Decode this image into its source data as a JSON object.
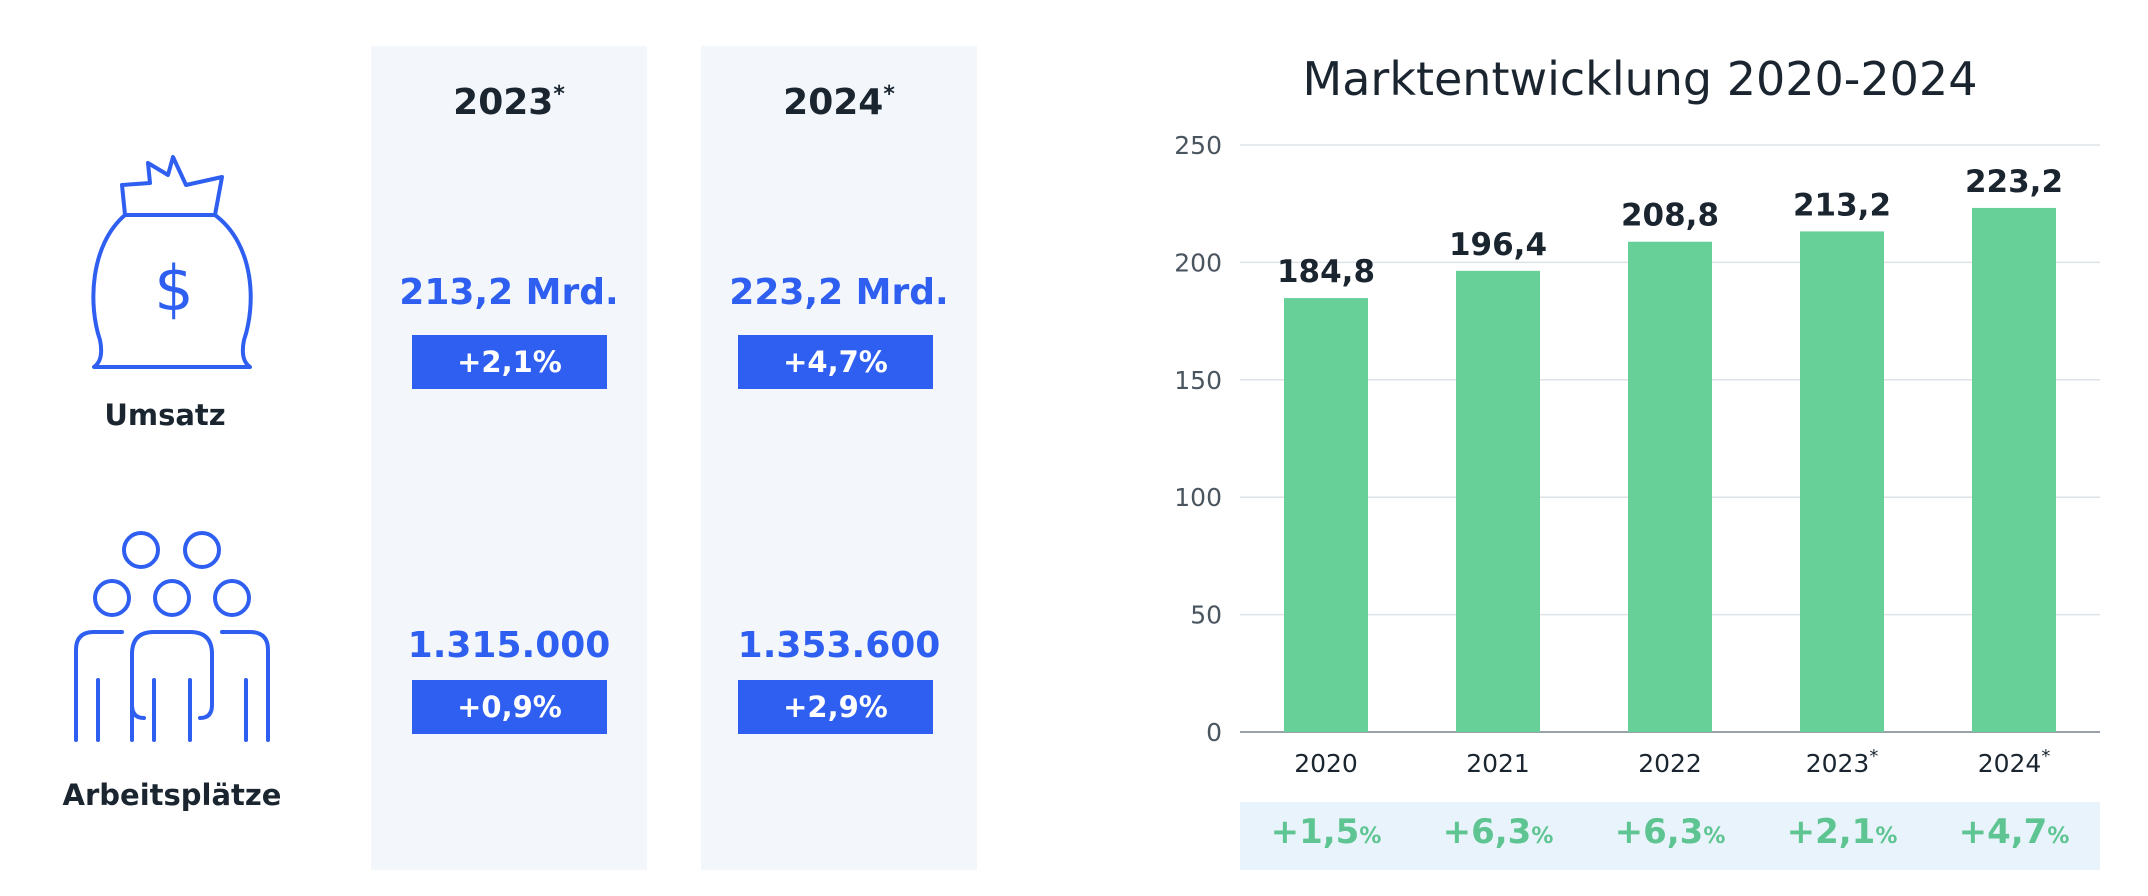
{
  "left_table": {
    "columns": [
      {
        "year": "2023",
        "mark": "*",
        "umsatz": "213,2 Mrd.",
        "umsatz_change": "+2,1%",
        "jobs": "1.315.000",
        "jobs_change": "+0,9%"
      },
      {
        "year": "2024",
        "mark": "*",
        "umsatz": "223,2 Mrd.",
        "umsatz_change": "+4,7%",
        "jobs": "1.353.600",
        "jobs_change": "+2,9%"
      }
    ],
    "rows": {
      "umsatz_label": "Umsatz",
      "jobs_label": "Arbeitsplätze"
    },
    "icons": {
      "umsatz": "money-bag-icon",
      "jobs": "people-group-icon"
    }
  },
  "colors": {
    "accent_blue": "#2f5ff0",
    "bar_green": "#67cf98",
    "growth_green": "#5ec592",
    "panel_bg": "#f3f7fc",
    "text_dark": "#1a2530"
  },
  "chart_data": {
    "type": "bar",
    "title": "Marktentwicklung 2020-2024",
    "categories": [
      "2020",
      "2021",
      "2022",
      "2023",
      "2024"
    ],
    "category_marks": [
      "",
      "",
      "",
      "*",
      "*"
    ],
    "values": [
      184.8,
      196.4,
      208.8,
      213.2,
      223.2
    ],
    "value_labels": [
      "184,8",
      "196,4",
      "208,8",
      "213,2",
      "223,2"
    ],
    "ylim": [
      0,
      250
    ],
    "yticks": [
      0,
      50,
      100,
      150,
      200,
      250
    ],
    "grid": true,
    "growth": [
      {
        "value": "+1,5",
        "unit": "%"
      },
      {
        "value": "+6,3",
        "unit": "%"
      },
      {
        "value": "+6,3",
        "unit": "%"
      },
      {
        "value": "+2,1",
        "unit": "%"
      },
      {
        "value": "+4,7",
        "unit": "%"
      }
    ]
  }
}
